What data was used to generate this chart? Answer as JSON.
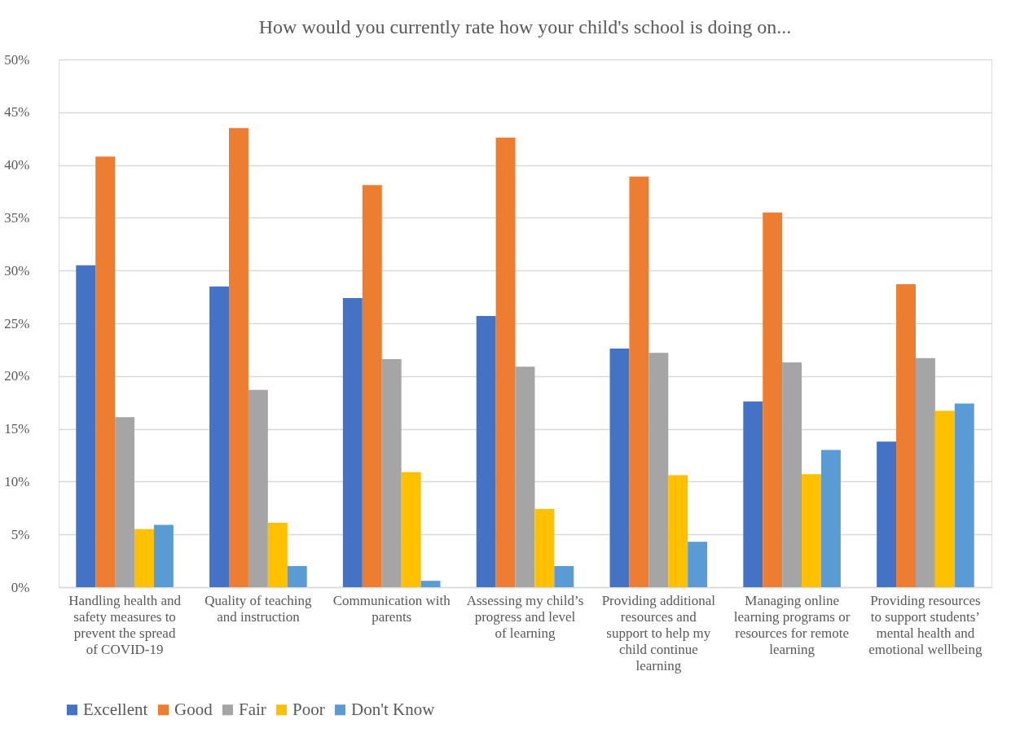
{
  "chart_data": {
    "type": "bar",
    "title": "How would you currently rate how your child's school is doing on...",
    "categories": [
      "Handling health and safety measures to prevent the spread of COVID-19",
      "Quality of teaching and instruction",
      "Communication with parents",
      "Assessing my child’s progress and level of learning",
      "Providing additional resources and support to help my child continue learning",
      "Managing online learning programs or resources for remote learning",
      "Providing resources to support students’ mental health and emotional wellbeing"
    ],
    "series": [
      {
        "name": "Excellent",
        "color": "#4472c4",
        "values": [
          30.5,
          28.5,
          27.4,
          25.7,
          22.6,
          17.6,
          13.8
        ]
      },
      {
        "name": "Good",
        "color": "#ed7d31",
        "values": [
          40.8,
          43.5,
          38.1,
          42.6,
          38.9,
          35.5,
          28.7
        ]
      },
      {
        "name": "Fair",
        "color": "#a5a5a5",
        "values": [
          16.1,
          18.7,
          21.6,
          20.9,
          22.2,
          21.3,
          21.7
        ]
      },
      {
        "name": "Poor",
        "color": "#ffc000",
        "values": [
          5.5,
          6.1,
          10.9,
          7.4,
          10.6,
          10.7,
          16.7
        ]
      },
      {
        "name": "Don't Know",
        "color": "#5b9bd5",
        "values": [
          5.9,
          2.0,
          0.6,
          2.0,
          4.3,
          13.0,
          17.4
        ]
      }
    ],
    "ylim": [
      0,
      50
    ],
    "yticks": [
      {
        "value": 0,
        "label": "0%"
      },
      {
        "value": 5,
        "label": "5%"
      },
      {
        "value": 10,
        "label": "10%"
      },
      {
        "value": 15,
        "label": "15%"
      },
      {
        "value": 20,
        "label": "20%"
      },
      {
        "value": 25,
        "label": "25%"
      },
      {
        "value": 30,
        "label": "30%"
      },
      {
        "value": 35,
        "label": "35%"
      },
      {
        "value": 40,
        "label": "40%"
      },
      {
        "value": 45,
        "label": "45%"
      },
      {
        "value": 50,
        "label": "50%"
      }
    ],
    "grid": "y",
    "legend": "bottom"
  }
}
